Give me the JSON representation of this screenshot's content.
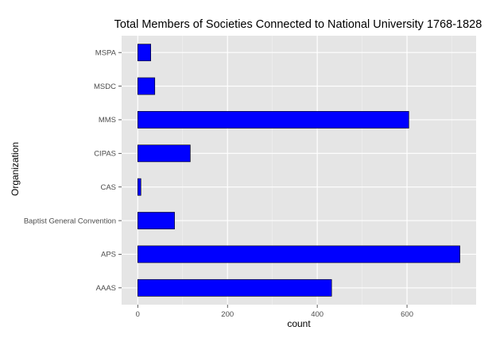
{
  "chart_data": {
    "type": "bar",
    "orientation": "horizontal",
    "title": "Total Members of Societies Connected to National University 1768-1828",
    "xlabel": "count",
    "ylabel": "Organization",
    "categories": [
      "MSPA",
      "MSDC",
      "MMS",
      "CIPAS",
      "CAS",
      "Baptist General Convention",
      "APS",
      "AAAS"
    ],
    "values": [
      29,
      38,
      604,
      117,
      7,
      82,
      718,
      432
    ],
    "xlim": [
      -36,
      754
    ],
    "xticks": [
      0,
      200,
      400,
      600
    ],
    "grid": true,
    "legend": "none",
    "colors": {
      "bar_fill": "#0000ff",
      "bar_stroke": "#000000",
      "panel_background": "#e5e5e5",
      "grid_major": "#ffffff",
      "grid_minor": "#f2f2f2"
    }
  }
}
